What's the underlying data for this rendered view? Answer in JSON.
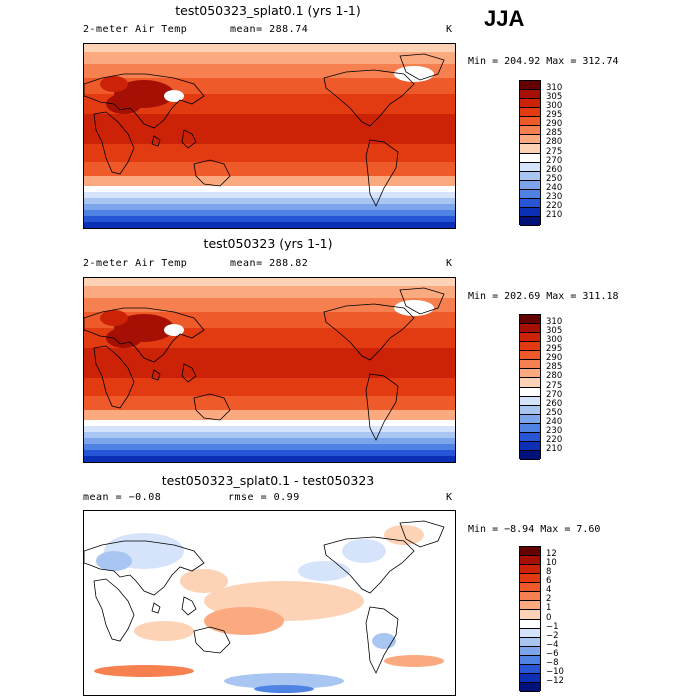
{
  "season": "JJA",
  "panels": [
    {
      "title": "test050323_splat0.1 (yrs 1-1)",
      "variable": "2-meter Air Temp",
      "stat": "mean= 288.74",
      "units": "K",
      "minmax": "Min = 204.92 Max = 312.74",
      "colorbar": {
        "labels": [
          "310",
          "305",
          "300",
          "295",
          "290",
          "285",
          "280",
          "275",
          "270",
          "260",
          "250",
          "240",
          "230",
          "220",
          "210"
        ],
        "colors": [
          "#650000",
          "#a50f04",
          "#cb2208",
          "#e23b12",
          "#ee5a2a",
          "#f6804f",
          "#fbaa80",
          "#fdd2b5",
          "#ffffff",
          "#d5e4fa",
          "#a9c6f3",
          "#7ca5ec",
          "#4f83e3",
          "#2656d6",
          "#0b2fb5",
          "#00127a"
        ]
      },
      "map_type": "temperature"
    },
    {
      "title": "test050323 (yrs 1-1)",
      "variable": "2-meter Air Temp",
      "stat": "mean= 288.82",
      "units": "K",
      "minmax": "Min = 202.69 Max = 311.18",
      "colorbar": {
        "labels": [
          "310",
          "305",
          "300",
          "295",
          "290",
          "285",
          "280",
          "275",
          "270",
          "260",
          "250",
          "240",
          "230",
          "220",
          "210"
        ],
        "colors": [
          "#650000",
          "#a50f04",
          "#cb2208",
          "#e23b12",
          "#ee5a2a",
          "#f6804f",
          "#fbaa80",
          "#fdd2b5",
          "#ffffff",
          "#d5e4fa",
          "#a9c6f3",
          "#7ca5ec",
          "#4f83e3",
          "#2656d6",
          "#0b2fb5",
          "#00127a"
        ]
      },
      "map_type": "temperature"
    },
    {
      "title": "test050323_splat0.1 - test050323",
      "stat": "mean =  −0.08",
      "stat2": "rmse =   0.99",
      "units": "K",
      "minmax": "Min =  −8.94 Max =   7.60",
      "colorbar": {
        "labels": [
          "12",
          "10",
          "8",
          "6",
          "4",
          "2",
          "1",
          "0",
          "−1",
          "−2",
          "−4",
          "−6",
          "−8",
          "−10",
          "−12"
        ],
        "colors": [
          "#650000",
          "#a50f04",
          "#cb2208",
          "#e23b12",
          "#ee5a2a",
          "#f6804f",
          "#fbaa80",
          "#fdd2b5",
          "#ffffff",
          "#d5e4fa",
          "#a9c6f3",
          "#7ca5ec",
          "#4f83e3",
          "#2656d6",
          "#0b2fb5",
          "#00127a"
        ]
      },
      "map_type": "difference"
    }
  ]
}
